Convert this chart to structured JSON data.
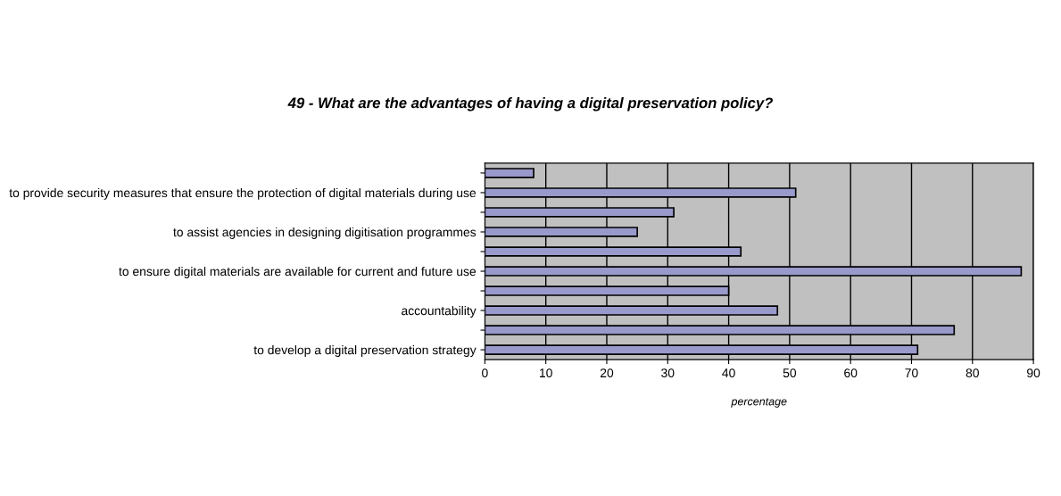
{
  "chart_data": {
    "type": "bar",
    "orientation": "horizontal",
    "title": "49 - What are the advantages of having a digital preservation policy?",
    "xlabel": "percentage",
    "categories": [
      null,
      "to provide security measures that ensure the protection of digital materials during use",
      null,
      "to assist agencies in designing digitisation programmes",
      null,
      "to ensure digital materials are available for current and future use",
      null,
      "accountability",
      null,
      "to develop a digital preservation strategy"
    ],
    "values": [
      8,
      51,
      31,
      25,
      42,
      88,
      40,
      48,
      77,
      71
    ],
    "color": "#9999cc",
    "xlim": [
      0,
      90
    ],
    "xticks": [
      0,
      10,
      20,
      30,
      40,
      50,
      60,
      70,
      80,
      90
    ],
    "grid": "x",
    "legend": false
  }
}
